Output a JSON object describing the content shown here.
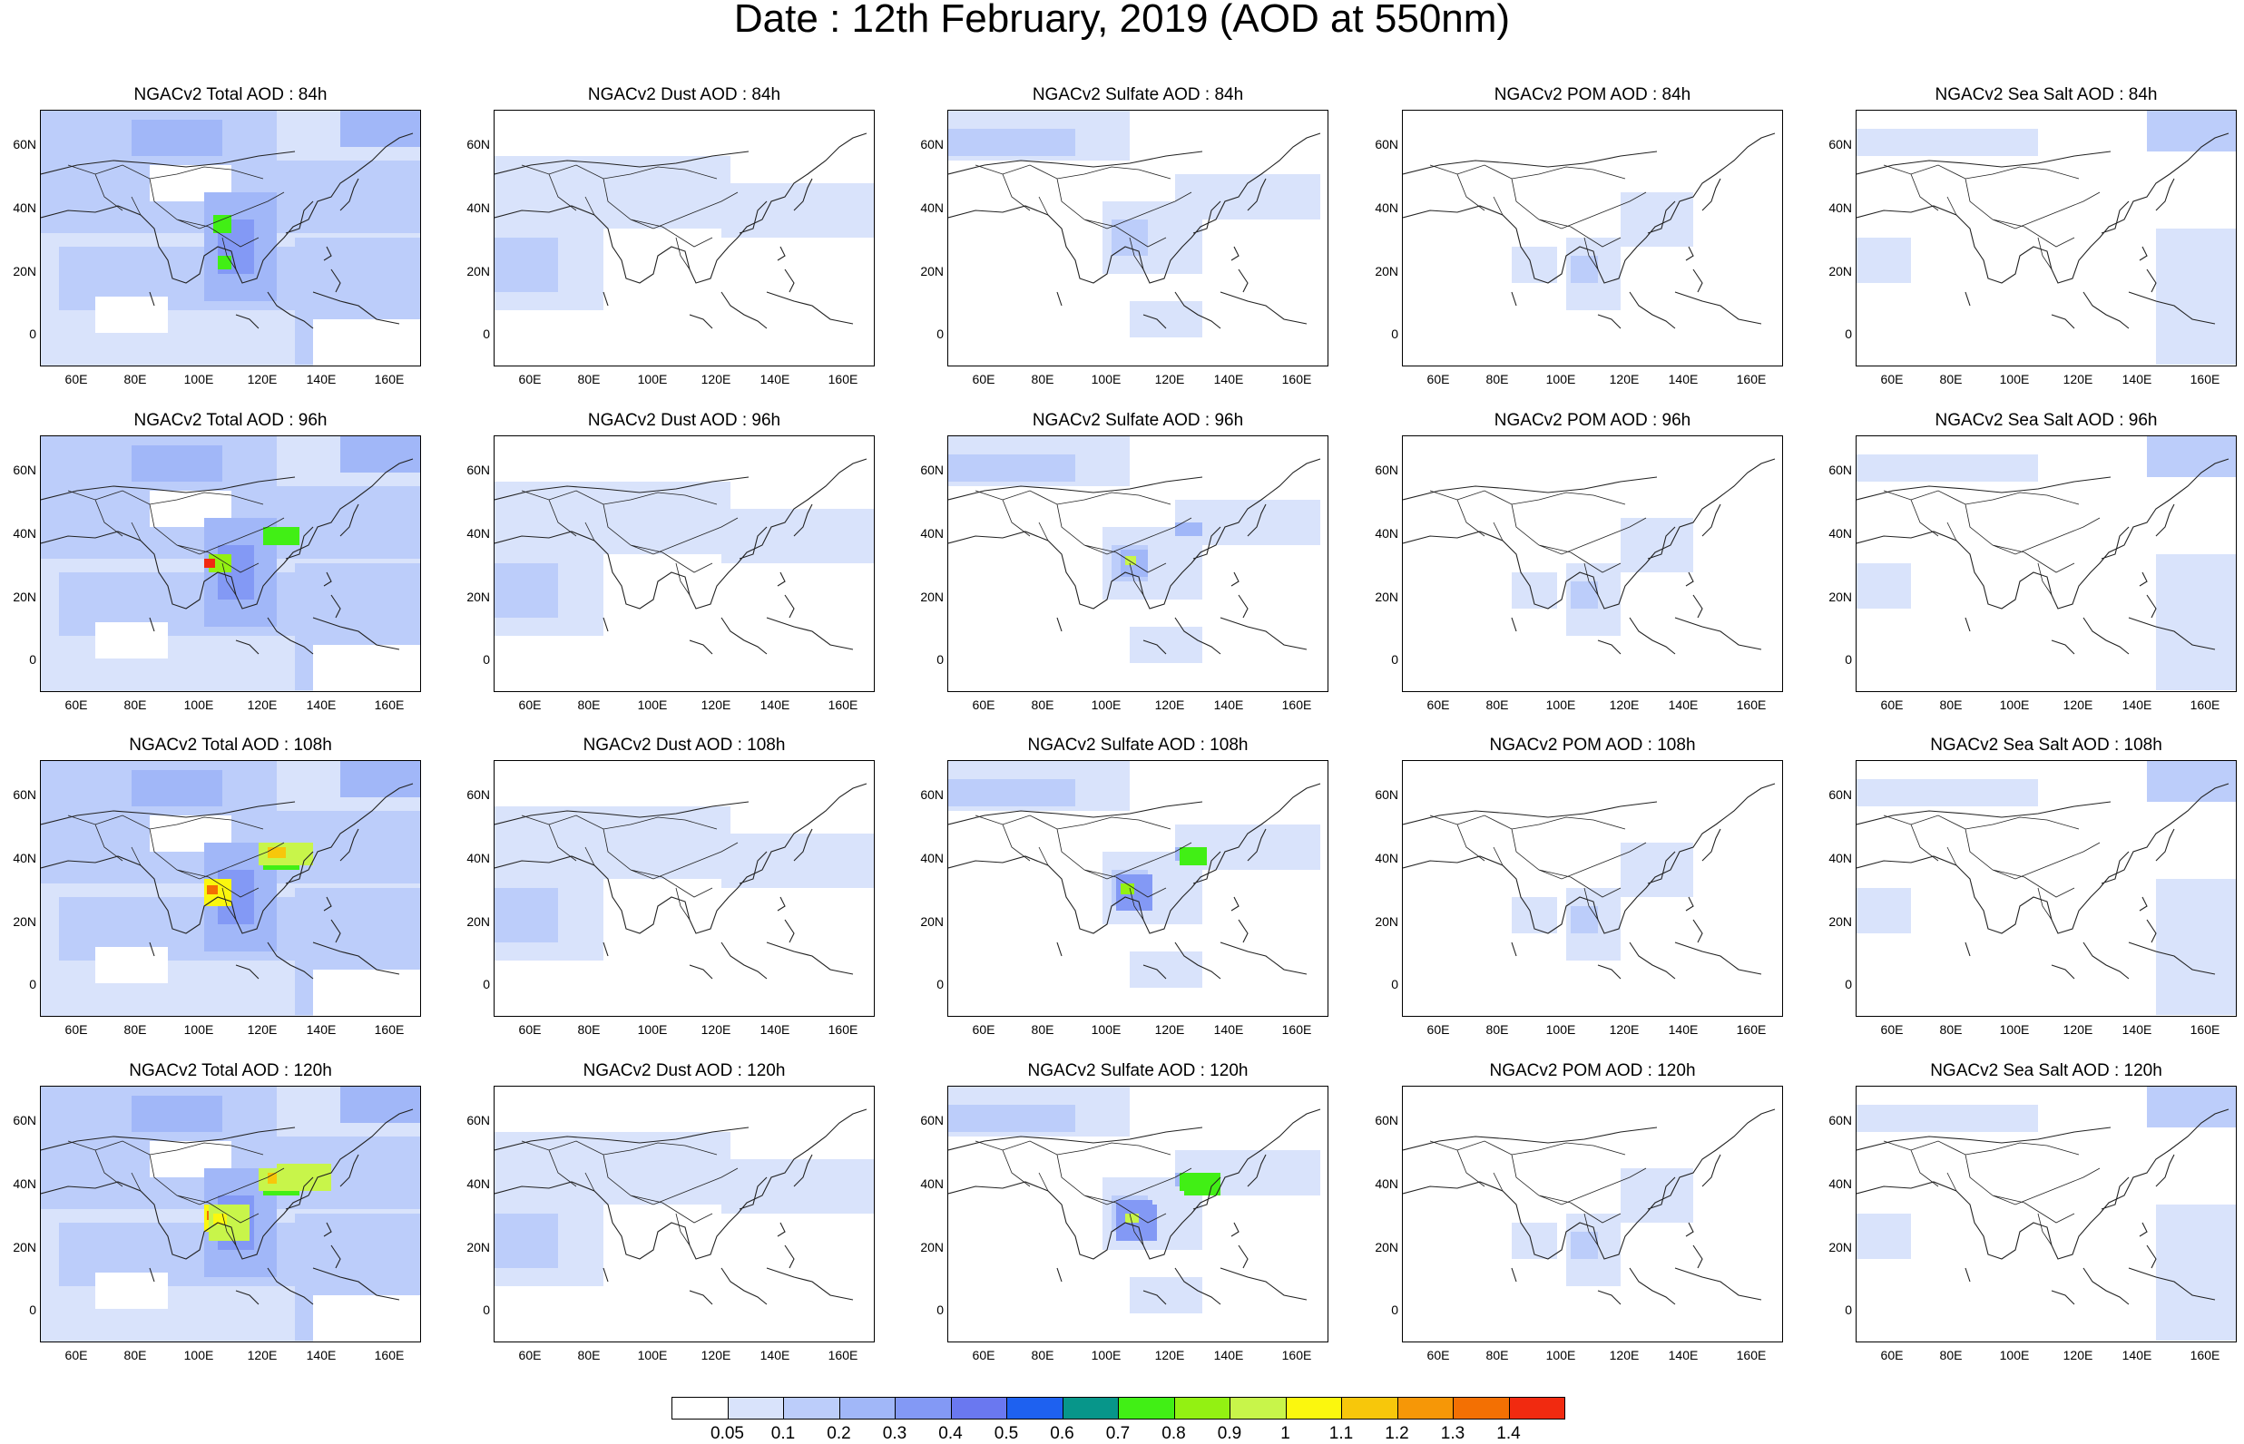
{
  "title": "Date : 12th February, 2019 (AOD at 550nm)",
  "lat_ticks": [
    "60N",
    "40N",
    "20N",
    "0"
  ],
  "lon_ticks": [
    "60E",
    "80E",
    "100E",
    "120E",
    "140E",
    "160E"
  ],
  "rows": [
    {
      "titles": [
        "NGACv2 Total AOD : 84h",
        "NGACv2 Dust AOD : 84h",
        "NGACv2 Sulfate AOD : 84h",
        "NGACv2 POM AOD : 84h",
        "NGACv2 Sea Salt AOD : 84h"
      ]
    },
    {
      "titles": [
        "NGACv2 Total AOD : 96h",
        "NGACv2 Dust AOD : 96h",
        "NGACv2 Sulfate AOD : 96h",
        "NGACv2 POM AOD : 96h",
        "NGACv2 Sea Salt AOD : 96h"
      ]
    },
    {
      "titles": [
        "NGACv2 Total AOD : 108h",
        "NGACv2 Dust AOD : 108h",
        "NGACv2 Sulfate AOD : 108h",
        "NGACv2 POM AOD : 108h",
        "NGACv2 Sea Salt AOD : 108h"
      ]
    },
    {
      "titles": [
        "NGACv2 Total AOD : 120h",
        "NGACv2 Dust AOD : 120h",
        "NGACv2 Sulfate AOD : 120h",
        "NGACv2 POM AOD : 120h",
        "NGACv2 Sea Salt  AOD : 120h"
      ]
    }
  ],
  "colorbar": {
    "labels": [
      "0.05",
      "0.1",
      "0.2",
      "0.3",
      "0.4",
      "0.5",
      "0.6",
      "0.7",
      "0.8",
      "0.9",
      "1",
      "1.1",
      "1.2",
      "1.3",
      "1.4"
    ],
    "colors": [
      "#ffffff",
      "#d9e3fb",
      "#bccdfa",
      "#a1b7f8",
      "#8399f5",
      "#6a78f0",
      "#1e61f0",
      "#07968a",
      "#41ef15",
      "#93f112",
      "#c8f54a",
      "#fbf70e",
      "#f7c70b",
      "#f69707",
      "#f37003",
      "#f12a10"
    ]
  }
}
